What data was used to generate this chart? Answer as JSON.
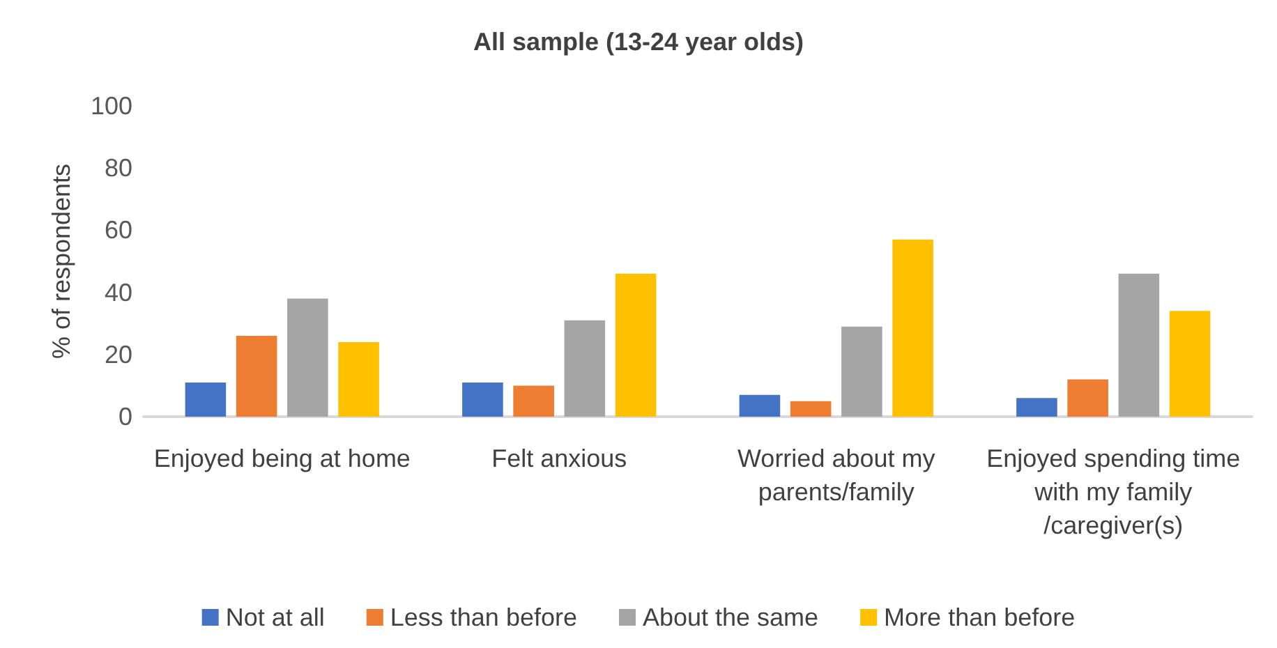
{
  "chart_data": {
    "type": "bar",
    "title": "All sample (13-24 year olds)",
    "ylabel": "% of respondents",
    "categories": [
      "Enjoyed being at home",
      "Felt anxious",
      "Worried about my parents/family",
      "Enjoyed spending time with my family /caregiver(s)"
    ],
    "series": [
      {
        "name": "Not at all",
        "color": "#4472c4",
        "values": [
          11,
          11,
          7,
          6
        ]
      },
      {
        "name": "Less than before",
        "color": "#ed7d31",
        "values": [
          26,
          10,
          5,
          12
        ]
      },
      {
        "name": "About the same",
        "color": "#a5a5a5",
        "values": [
          38,
          31,
          29,
          46
        ]
      },
      {
        "name": "More than before",
        "color": "#ffc000",
        "values": [
          24,
          46,
          57,
          34
        ]
      }
    ],
    "ylim": [
      0,
      100
    ],
    "yticks": [
      0,
      20,
      40,
      60,
      80,
      100
    ],
    "grid": false,
    "legend": "bottom"
  }
}
